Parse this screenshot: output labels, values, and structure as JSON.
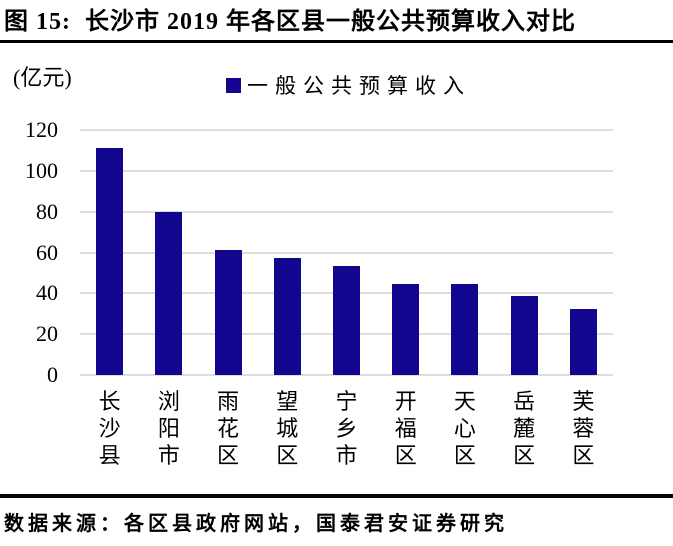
{
  "header": {
    "title": "图 15:  长沙市 2019 年各区县一般公共预算收入对比"
  },
  "chart": {
    "unit_label": "(亿元)",
    "legend_label": "一般公共预算收入"
  },
  "chart_data": {
    "type": "bar",
    "title": "长沙市 2019 年各区县一般公共预算收入对比",
    "categories": [
      "长沙县",
      "浏阳市",
      "雨花区",
      "望城区",
      "宁乡市",
      "开福区",
      "天心区",
      "岳麓区",
      "芙蓉区"
    ],
    "values": [
      111,
      80,
      61,
      57.5,
      53.5,
      44.5,
      44.4,
      38.5,
      32.5
    ],
    "unit": "亿元",
    "legend": [
      "一般公共预算收入"
    ],
    "ylabel": "(亿元)",
    "xlabel": "",
    "ylim": [
      0,
      120
    ],
    "ytick_step": 20,
    "yticks": [
      0,
      20,
      40,
      60,
      80,
      100,
      120
    ],
    "grid": true,
    "legend_position": "top-center",
    "bar_color": "#11068D",
    "grid_color": "#DDDDDD"
  },
  "footer": {
    "source": "数据来源：各区县政府网站，国泰君安证券研究"
  }
}
